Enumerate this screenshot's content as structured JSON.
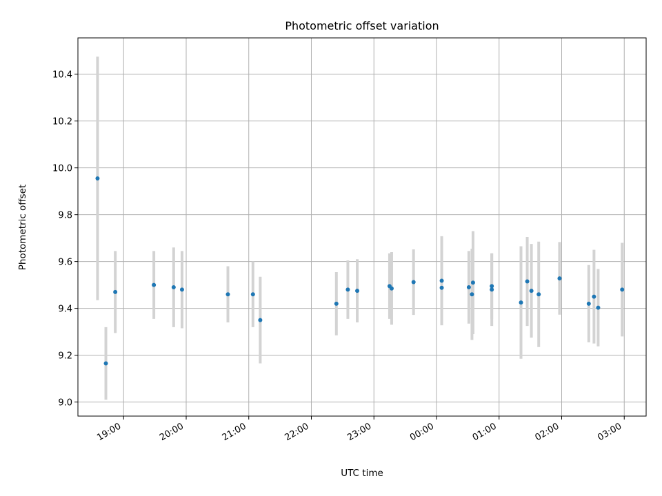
{
  "chart_data": {
    "type": "scatter",
    "title": "Photometric offset variation",
    "xlabel": "UTC time",
    "ylabel": "Photometric offset",
    "x_scale": "time",
    "x_start_label": "18:30",
    "xlim_hours": [
      18.27,
      27.35
    ],
    "ylim": [
      8.94,
      10.555
    ],
    "x_ticks": [
      "19:00",
      "20:00",
      "21:00",
      "22:00",
      "23:00",
      "00:00",
      "01:00",
      "02:00",
      "03:00"
    ],
    "x_tick_hours": [
      19,
      20,
      21,
      22,
      23,
      24,
      25,
      26,
      27
    ],
    "y_ticks": [
      9.0,
      9.2,
      9.4,
      9.6,
      9.8,
      10.0,
      10.2,
      10.4
    ],
    "y_tick_labels": [
      "9.0",
      "9.2",
      "9.4",
      "9.6",
      "9.8",
      "10.0",
      "10.2",
      "10.4"
    ],
    "grid": true,
    "marker_color": "#1f77b4",
    "errorbar_color": "#d3d3d3",
    "points": [
      {
        "t": "18:35",
        "y": 9.955,
        "err": 0.52
      },
      {
        "t": "18:43",
        "y": 9.165,
        "err": 0.155
      },
      {
        "t": "18:52",
        "y": 9.47,
        "err": 0.175
      },
      {
        "t": "19:29",
        "y": 9.5,
        "err": 0.145
      },
      {
        "t": "19:48",
        "y": 9.49,
        "err": 0.17
      },
      {
        "t": "19:56",
        "y": 9.48,
        "err": 0.165
      },
      {
        "t": "20:40",
        "y": 9.46,
        "err": 0.12
      },
      {
        "t": "21:04",
        "y": 9.46,
        "err": 0.14
      },
      {
        "t": "21:11",
        "y": 9.35,
        "err": 0.185
      },
      {
        "t": "22:24",
        "y": 9.42,
        "err": 0.135
      },
      {
        "t": "22:35",
        "y": 9.48,
        "err": 0.125
      },
      {
        "t": "22:44",
        "y": 9.475,
        "err": 0.135
      },
      {
        "t": "23:15",
        "y": 9.495,
        "err": 0.14
      },
      {
        "t": "23:17",
        "y": 9.485,
        "err": 0.155
      },
      {
        "t": "23:38",
        "y": 9.512,
        "err": 0.14
      },
      {
        "t": "00:05",
        "y": 9.518,
        "err": 0.19
      },
      {
        "t": "00:05",
        "y": 9.488,
        "err": 0.16
      },
      {
        "t": "00:31",
        "y": 9.49,
        "err": 0.155
      },
      {
        "t": "00:34",
        "y": 9.46,
        "err": 0.195
      },
      {
        "t": "00:35",
        "y": 9.51,
        "err": 0.22
      },
      {
        "t": "00:53",
        "y": 9.495,
        "err": 0.14
      },
      {
        "t": "00:53",
        "y": 9.48,
        "err": 0.155
      },
      {
        "t": "01:21",
        "y": 9.425,
        "err": 0.24
      },
      {
        "t": "01:27",
        "y": 9.515,
        "err": 0.19
      },
      {
        "t": "01:31",
        "y": 9.475,
        "err": 0.2
      },
      {
        "t": "01:38",
        "y": 9.46,
        "err": 0.225
      },
      {
        "t": "01:58",
        "y": 9.528,
        "err": 0.155
      },
      {
        "t": "02:26",
        "y": 9.42,
        "err": 0.165
      },
      {
        "t": "02:31",
        "y": 9.45,
        "err": 0.2
      },
      {
        "t": "02:35",
        "y": 9.403,
        "err": 0.165
      },
      {
        "t": "02:58",
        "y": 9.48,
        "err": 0.2
      }
    ]
  }
}
